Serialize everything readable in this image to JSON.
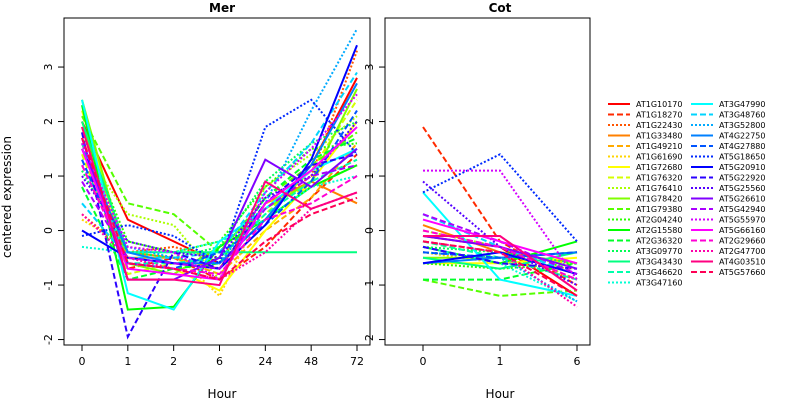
{
  "chart_data": [
    {
      "type": "line",
      "title": "Mer",
      "xlabel": "Hour",
      "ylabel": "centered expression",
      "x": [
        "0",
        "1",
        "2",
        "6",
        "24",
        "48",
        "72"
      ],
      "ylim": [
        -2.1,
        3.9
      ],
      "yticks": [
        -2,
        -1,
        0,
        1,
        2,
        3
      ],
      "series": [
        {
          "name": "AT1G10170",
          "values": [
            2.0,
            0.2,
            -0.2,
            -0.6,
            0.2,
            1.2,
            2.8
          ]
        },
        {
          "name": "AT1G18270",
          "values": [
            1.6,
            -0.7,
            -0.5,
            -0.9,
            -0.3,
            0.6,
            1.4
          ]
        },
        {
          "name": "AT1G22430",
          "values": [
            0.3,
            -0.4,
            -0.3,
            -0.5,
            0.4,
            1.0,
            3.3
          ]
        },
        {
          "name": "AT1G33480",
          "values": [
            1.9,
            -0.4,
            -0.5,
            -0.7,
            0.5,
            0.9,
            0.5
          ]
        },
        {
          "name": "AT1G49210",
          "values": [
            1.7,
            -0.5,
            -0.5,
            -0.8,
            0.0,
            0.6,
            1.6
          ]
        },
        {
          "name": "AT1G61690",
          "values": [
            0.2,
            -0.3,
            -0.4,
            -1.2,
            0.5,
            0.8,
            1.2
          ]
        },
        {
          "name": "AT1G72680",
          "values": [
            2.2,
            -0.6,
            -0.7,
            -1.1,
            0.0,
            0.9,
            2.0
          ]
        },
        {
          "name": "AT1G76320",
          "values": [
            1.4,
            -0.8,
            -0.6,
            -0.5,
            0.3,
            1.1,
            2.4
          ]
        },
        {
          "name": "AT1G76410",
          "values": [
            1.5,
            0.3,
            0.1,
            -0.9,
            0.8,
            1.4,
            2.1
          ]
        },
        {
          "name": "AT1G78420",
          "values": [
            2.4,
            -0.6,
            -0.8,
            -0.3,
            0.4,
            0.9,
            2.6
          ]
        },
        {
          "name": "AT1G79380",
          "values": [
            2.1,
            0.5,
            0.3,
            -0.4,
            0.6,
            1.2,
            1.8
          ]
        },
        {
          "name": "AT2G04240",
          "values": [
            1.8,
            -0.2,
            -0.4,
            -0.2,
            0.8,
            1.5,
            1.6
          ]
        },
        {
          "name": "AT2G15580",
          "values": [
            2.3,
            -1.45,
            -1.4,
            -0.3,
            0.2,
            0.8,
            1.2
          ]
        },
        {
          "name": "AT2G36320",
          "values": [
            0.8,
            -0.9,
            -0.7,
            -0.6,
            0.6,
            1.3,
            1.7
          ]
        },
        {
          "name": "AT3G09770",
          "values": [
            1.1,
            -0.4,
            -0.5,
            -0.3,
            0.9,
            1.6,
            2.0
          ]
        },
        {
          "name": "AT3G43430",
          "values": [
            2.0,
            -0.4,
            -0.4,
            -0.4,
            -0.4,
            -0.4,
            -0.4
          ]
        },
        {
          "name": "AT3G46620",
          "values": [
            1.6,
            -0.6,
            -0.6,
            -0.5,
            0.3,
            0.9,
            1.3
          ]
        },
        {
          "name": "AT3G47160",
          "values": [
            -0.3,
            -0.4,
            -0.4,
            -0.2,
            0.2,
            0.8,
            1.0
          ]
        },
        {
          "name": "AT3G47990",
          "values": [
            2.4,
            -1.15,
            -1.45,
            -0.2,
            0.4,
            1.1,
            1.5
          ]
        },
        {
          "name": "AT3G48760",
          "values": [
            0.5,
            -0.5,
            -0.5,
            -0.4,
            0.7,
            1.6,
            2.9
          ]
        },
        {
          "name": "AT3G52800",
          "values": [
            1.2,
            -0.3,
            -0.5,
            -0.6,
            0.5,
            2.2,
            3.7
          ]
        },
        {
          "name": "AT4G22750",
          "values": [
            1.5,
            -0.4,
            -0.6,
            -0.6,
            0.2,
            1.2,
            2.7
          ]
        },
        {
          "name": "AT4G27880",
          "values": [
            1.3,
            -0.6,
            -0.7,
            -0.4,
            0.1,
            0.9,
            2.2
          ]
        },
        {
          "name": "AT5G18650",
          "values": [
            -0.1,
            0.1,
            -0.1,
            -0.6,
            1.9,
            2.4,
            1.4
          ]
        },
        {
          "name": "AT5G20910",
          "values": [
            0.0,
            -0.5,
            -0.6,
            -0.7,
            0.1,
            1.3,
            3.4
          ]
        },
        {
          "name": "AT5G22920",
          "values": [
            1.8,
            -1.95,
            -0.4,
            -0.7,
            0.5,
            1.2,
            1.4
          ]
        },
        {
          "name": "AT5G25560",
          "values": [
            1.0,
            -0.2,
            -0.4,
            -0.5,
            0.6,
            1.0,
            2.0
          ]
        },
        {
          "name": "AT5G26610",
          "values": [
            1.7,
            -0.9,
            -0.9,
            -0.5,
            1.3,
            0.8,
            1.5
          ]
        },
        {
          "name": "AT5G42940",
          "values": [
            0.9,
            -0.5,
            -0.6,
            -0.7,
            0.4,
            1.0,
            1.2
          ]
        },
        {
          "name": "AT5G55970",
          "values": [
            1.6,
            -0.3,
            -0.4,
            -0.9,
            0.7,
            1.5,
            2.5
          ]
        },
        {
          "name": "AT5G66160",
          "values": [
            1.5,
            -0.7,
            -0.8,
            -0.9,
            0.5,
            1.1,
            1.9
          ]
        },
        {
          "name": "AT2G29660",
          "values": [
            1.2,
            -0.6,
            -0.7,
            -0.8,
            0.2,
            0.5,
            1.0
          ]
        },
        {
          "name": "AT2G47700",
          "values": [
            0.3,
            -0.5,
            -0.7,
            -0.9,
            -0.4,
            0.4,
            0.7
          ]
        },
        {
          "name": "AT4G03510",
          "values": [
            1.9,
            -0.9,
            -0.9,
            -1.0,
            0.9,
            0.4,
            0.7
          ]
        },
        {
          "name": "AT5G57660",
          "values": [
            1.7,
            -0.6,
            -0.7,
            -0.9,
            -0.2,
            0.3,
            0.6
          ]
        }
      ]
    },
    {
      "type": "line",
      "title": "Cot",
      "xlabel": "Hour",
      "x": [
        "0",
        "1",
        "6"
      ],
      "ylim": [
        -2.1,
        3.9
      ],
      "yticks": [
        -2,
        -1,
        0,
        1,
        2,
        3
      ],
      "series": [
        {
          "name": "AT1G10170",
          "values": [
            -0.1,
            -0.3,
            -1.2
          ]
        },
        {
          "name": "AT1G18270",
          "values": [
            1.9,
            -0.2,
            -1.0
          ]
        },
        {
          "name": "AT1G22430",
          "values": [
            -0.4,
            -0.5,
            -0.9
          ]
        },
        {
          "name": "AT1G33480",
          "values": [
            0.1,
            -0.4,
            -0.6
          ]
        },
        {
          "name": "AT1G49210",
          "values": [
            -0.2,
            -0.4,
            -0.8
          ]
        },
        {
          "name": "AT1G61690",
          "values": [
            -0.4,
            -0.6,
            -0.7
          ]
        },
        {
          "name": "AT1G72680",
          "values": [
            -0.6,
            -0.6,
            -0.5
          ]
        },
        {
          "name": "AT1G76320",
          "values": [
            -0.2,
            -0.5,
            -0.6
          ]
        },
        {
          "name": "AT1G76410",
          "values": [
            0.0,
            -0.3,
            -0.9
          ]
        },
        {
          "name": "AT1G78420",
          "values": [
            -0.5,
            -0.5,
            -0.4
          ]
        },
        {
          "name": "AT1G79380",
          "values": [
            -0.9,
            -1.2,
            -1.1
          ]
        },
        {
          "name": "AT2G04240",
          "values": [
            -0.6,
            -0.7,
            -0.6
          ]
        },
        {
          "name": "AT2G15580",
          "values": [
            -0.3,
            -0.6,
            -0.2
          ]
        },
        {
          "name": "AT2G36320",
          "values": [
            -0.9,
            -0.9,
            -0.6
          ]
        },
        {
          "name": "AT3G09770",
          "values": [
            -0.3,
            -0.4,
            -0.6
          ]
        },
        {
          "name": "AT3G43430",
          "values": [
            -0.5,
            -0.7,
            -0.4
          ]
        },
        {
          "name": "AT3G46620",
          "values": [
            -0.2,
            -0.5,
            -0.9
          ]
        },
        {
          "name": "AT3G47160",
          "values": [
            -0.3,
            -0.6,
            -1.3
          ]
        },
        {
          "name": "AT3G47990",
          "values": [
            0.7,
            -0.9,
            -1.2
          ]
        },
        {
          "name": "AT3G48760",
          "values": [
            0.3,
            -0.3,
            -0.8
          ]
        },
        {
          "name": "AT3G52800",
          "values": [
            -0.4,
            -0.5,
            -1.3
          ]
        },
        {
          "name": "AT4G22750",
          "values": [
            -0.6,
            -0.5,
            -0.4
          ]
        },
        {
          "name": "AT4G27880",
          "values": [
            -0.4,
            -0.5,
            -0.4
          ]
        },
        {
          "name": "AT5G18650",
          "values": [
            0.7,
            1.4,
            -0.2
          ]
        },
        {
          "name": "AT5G20910",
          "values": [
            -0.6,
            -0.4,
            -0.8
          ]
        },
        {
          "name": "AT5G22920",
          "values": [
            -0.3,
            -0.6,
            -0.7
          ]
        },
        {
          "name": "AT5G25560",
          "values": [
            0.9,
            -0.3,
            -1.0
          ]
        },
        {
          "name": "AT5G26610",
          "values": [
            -0.1,
            -0.3,
            -0.7
          ]
        },
        {
          "name": "AT5G42940",
          "values": [
            0.3,
            -0.2,
            -0.8
          ]
        },
        {
          "name": "AT5G55970",
          "values": [
            1.1,
            1.1,
            -0.9
          ]
        },
        {
          "name": "AT5G66160",
          "values": [
            0.2,
            -0.2,
            -0.6
          ]
        },
        {
          "name": "AT2G29660",
          "values": [
            0.0,
            -0.3,
            -0.9
          ]
        },
        {
          "name": "AT2G47700",
          "values": [
            -0.2,
            -0.4,
            -1.4
          ]
        },
        {
          "name": "AT4G03510",
          "values": [
            -0.1,
            -0.1,
            -1.1
          ]
        },
        {
          "name": "AT5G57660",
          "values": [
            -0.2,
            -0.4,
            -1.2
          ]
        }
      ]
    }
  ],
  "legend": {
    "entries": [
      {
        "name": "AT1G10170",
        "color": "#FF0000",
        "style": "solid"
      },
      {
        "name": "AT1G18270",
        "color": "#FF2A00",
        "style": "dashed"
      },
      {
        "name": "AT1G22430",
        "color": "#FF5500",
        "style": "dotted"
      },
      {
        "name": "AT1G33480",
        "color": "#FF8000",
        "style": "solid"
      },
      {
        "name": "AT1G49210",
        "color": "#FFAA00",
        "style": "dashed"
      },
      {
        "name": "AT1G61690",
        "color": "#FFD400",
        "style": "dotted"
      },
      {
        "name": "AT1G72680",
        "color": "#FFFF00",
        "style": "solid"
      },
      {
        "name": "AT1G76320",
        "color": "#D4FF00",
        "style": "dashed"
      },
      {
        "name": "AT1G76410",
        "color": "#AAFF00",
        "style": "dotted"
      },
      {
        "name": "AT1G78420",
        "color": "#80FF00",
        "style": "solid"
      },
      {
        "name": "AT1G79380",
        "color": "#55FF00",
        "style": "dashed"
      },
      {
        "name": "AT2G04240",
        "color": "#2AFF00",
        "style": "dotted"
      },
      {
        "name": "AT2G15580",
        "color": "#00FF00",
        "style": "solid"
      },
      {
        "name": "AT2G36320",
        "color": "#00FF2A",
        "style": "dashed"
      },
      {
        "name": "AT3G09770",
        "color": "#00FF55",
        "style": "dotted"
      },
      {
        "name": "AT3G43430",
        "color": "#00FF80",
        "style": "solid"
      },
      {
        "name": "AT3G46620",
        "color": "#00FFAA",
        "style": "dashed"
      },
      {
        "name": "AT3G47160",
        "color": "#00FFD4",
        "style": "dotted"
      },
      {
        "name": "AT3G47990",
        "color": "#00FFFF",
        "style": "solid"
      },
      {
        "name": "AT3G48760",
        "color": "#00D4FF",
        "style": "dashed"
      },
      {
        "name": "AT3G52800",
        "color": "#00AAFF",
        "style": "dotted"
      },
      {
        "name": "AT4G22750",
        "color": "#0080FF",
        "style": "solid"
      },
      {
        "name": "AT4G27880",
        "color": "#0055FF",
        "style": "dashed"
      },
      {
        "name": "AT5G18650",
        "color": "#002AFF",
        "style": "dotted"
      },
      {
        "name": "AT5G20910",
        "color": "#0000FF",
        "style": "solid"
      },
      {
        "name": "AT5G22920",
        "color": "#2A00FF",
        "style": "dashed"
      },
      {
        "name": "AT5G25560",
        "color": "#5500FF",
        "style": "dotted"
      },
      {
        "name": "AT5G26610",
        "color": "#8000FF",
        "style": "solid"
      },
      {
        "name": "AT5G42940",
        "color": "#AA00FF",
        "style": "dashed"
      },
      {
        "name": "AT5G55970",
        "color": "#D400FF",
        "style": "dotted"
      },
      {
        "name": "AT5G66160",
        "color": "#FF00FF",
        "style": "solid"
      },
      {
        "name": "AT2G29660",
        "color": "#FF00D4",
        "style": "dashed"
      },
      {
        "name": "AT2G47700",
        "color": "#FF00AA",
        "style": "dotted"
      },
      {
        "name": "AT4G03510",
        "color": "#FF0080",
        "style": "solid"
      },
      {
        "name": "AT5G57660",
        "color": "#FF0055",
        "style": "dashed"
      }
    ]
  }
}
